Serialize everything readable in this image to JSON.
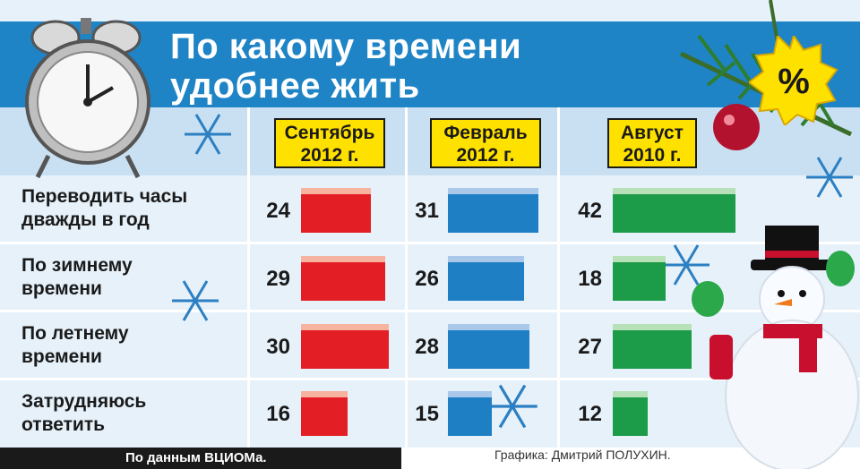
{
  "title": {
    "line1": "По какому времени",
    "line2": "удобнее жить"
  },
  "badge": {
    "text": "%"
  },
  "columns": [
    {
      "line1": "Сентябрь",
      "line2": "2012 г."
    },
    {
      "line1": "Февраль",
      "line2": "2012 г."
    },
    {
      "line1": "Август",
      "line2": "2010 г."
    }
  ],
  "rows": [
    {
      "line1": "Переводить часы",
      "line2": "дважды в год"
    },
    {
      "line1": "По зимнему",
      "line2": "времени"
    },
    {
      "line1": "По летнему",
      "line2": "времени"
    },
    {
      "line1": "Затрудняюсь",
      "line2": "ответить"
    }
  ],
  "chart_data": {
    "type": "bar",
    "categories": [
      "Переводить часы дважды в год",
      "По зимнему времени",
      "По летнему времени",
      "Затрудняюсь ответить"
    ],
    "series": [
      {
        "name": "Сентябрь 2012 г.",
        "values": [
          24,
          29,
          30,
          16
        ],
        "color": "#e31e24"
      },
      {
        "name": "Февраль 2012 г.",
        "values": [
          31,
          26,
          28,
          15
        ],
        "color": "#1f7fc4"
      },
      {
        "name": "Август 2010 г.",
        "values": [
          42,
          18,
          27,
          12
        ],
        "color": "#1c9b48"
      }
    ]
  },
  "colors": {
    "banner": "#1e84c6",
    "header_box": "#ffe100"
  },
  "footer": {
    "source": "По данным ВЦИОМа.",
    "credit": "Графика: Дмитрий ПОЛУХИН."
  }
}
